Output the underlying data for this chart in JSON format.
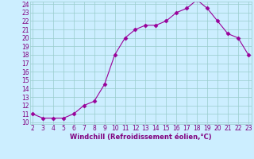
{
  "x": [
    2,
    3,
    4,
    5,
    6,
    7,
    8,
    9,
    10,
    11,
    12,
    13,
    14,
    15,
    16,
    17,
    18,
    19,
    20,
    21,
    22,
    23
  ],
  "y": [
    11,
    10.5,
    10.5,
    10.5,
    11,
    12,
    12.5,
    14.5,
    18,
    20,
    21,
    21.5,
    21.5,
    22,
    23,
    23.5,
    24.5,
    23.5,
    22,
    20.5,
    20,
    18
  ],
  "line_color": "#990099",
  "marker": "D",
  "marker_size": 2.5,
  "bg_color": "#cceeff",
  "grid_color": "#99cccc",
  "xlabel": "Windchill (Refroidissement éolien,°C)",
  "xlabel_color": "#800080",
  "tick_color": "#800080",
  "xlim": [
    2,
    23
  ],
  "ylim": [
    10,
    24
  ],
  "yticks": [
    10,
    11,
    12,
    13,
    14,
    15,
    16,
    17,
    18,
    19,
    20,
    21,
    22,
    23,
    24
  ],
  "xticks": [
    2,
    3,
    4,
    5,
    6,
    7,
    8,
    9,
    10,
    11,
    12,
    13,
    14,
    15,
    16,
    17,
    18,
    19,
    20,
    21,
    22,
    23
  ],
  "tick_fontsize": 5.5,
  "label_fontsize": 6.0
}
